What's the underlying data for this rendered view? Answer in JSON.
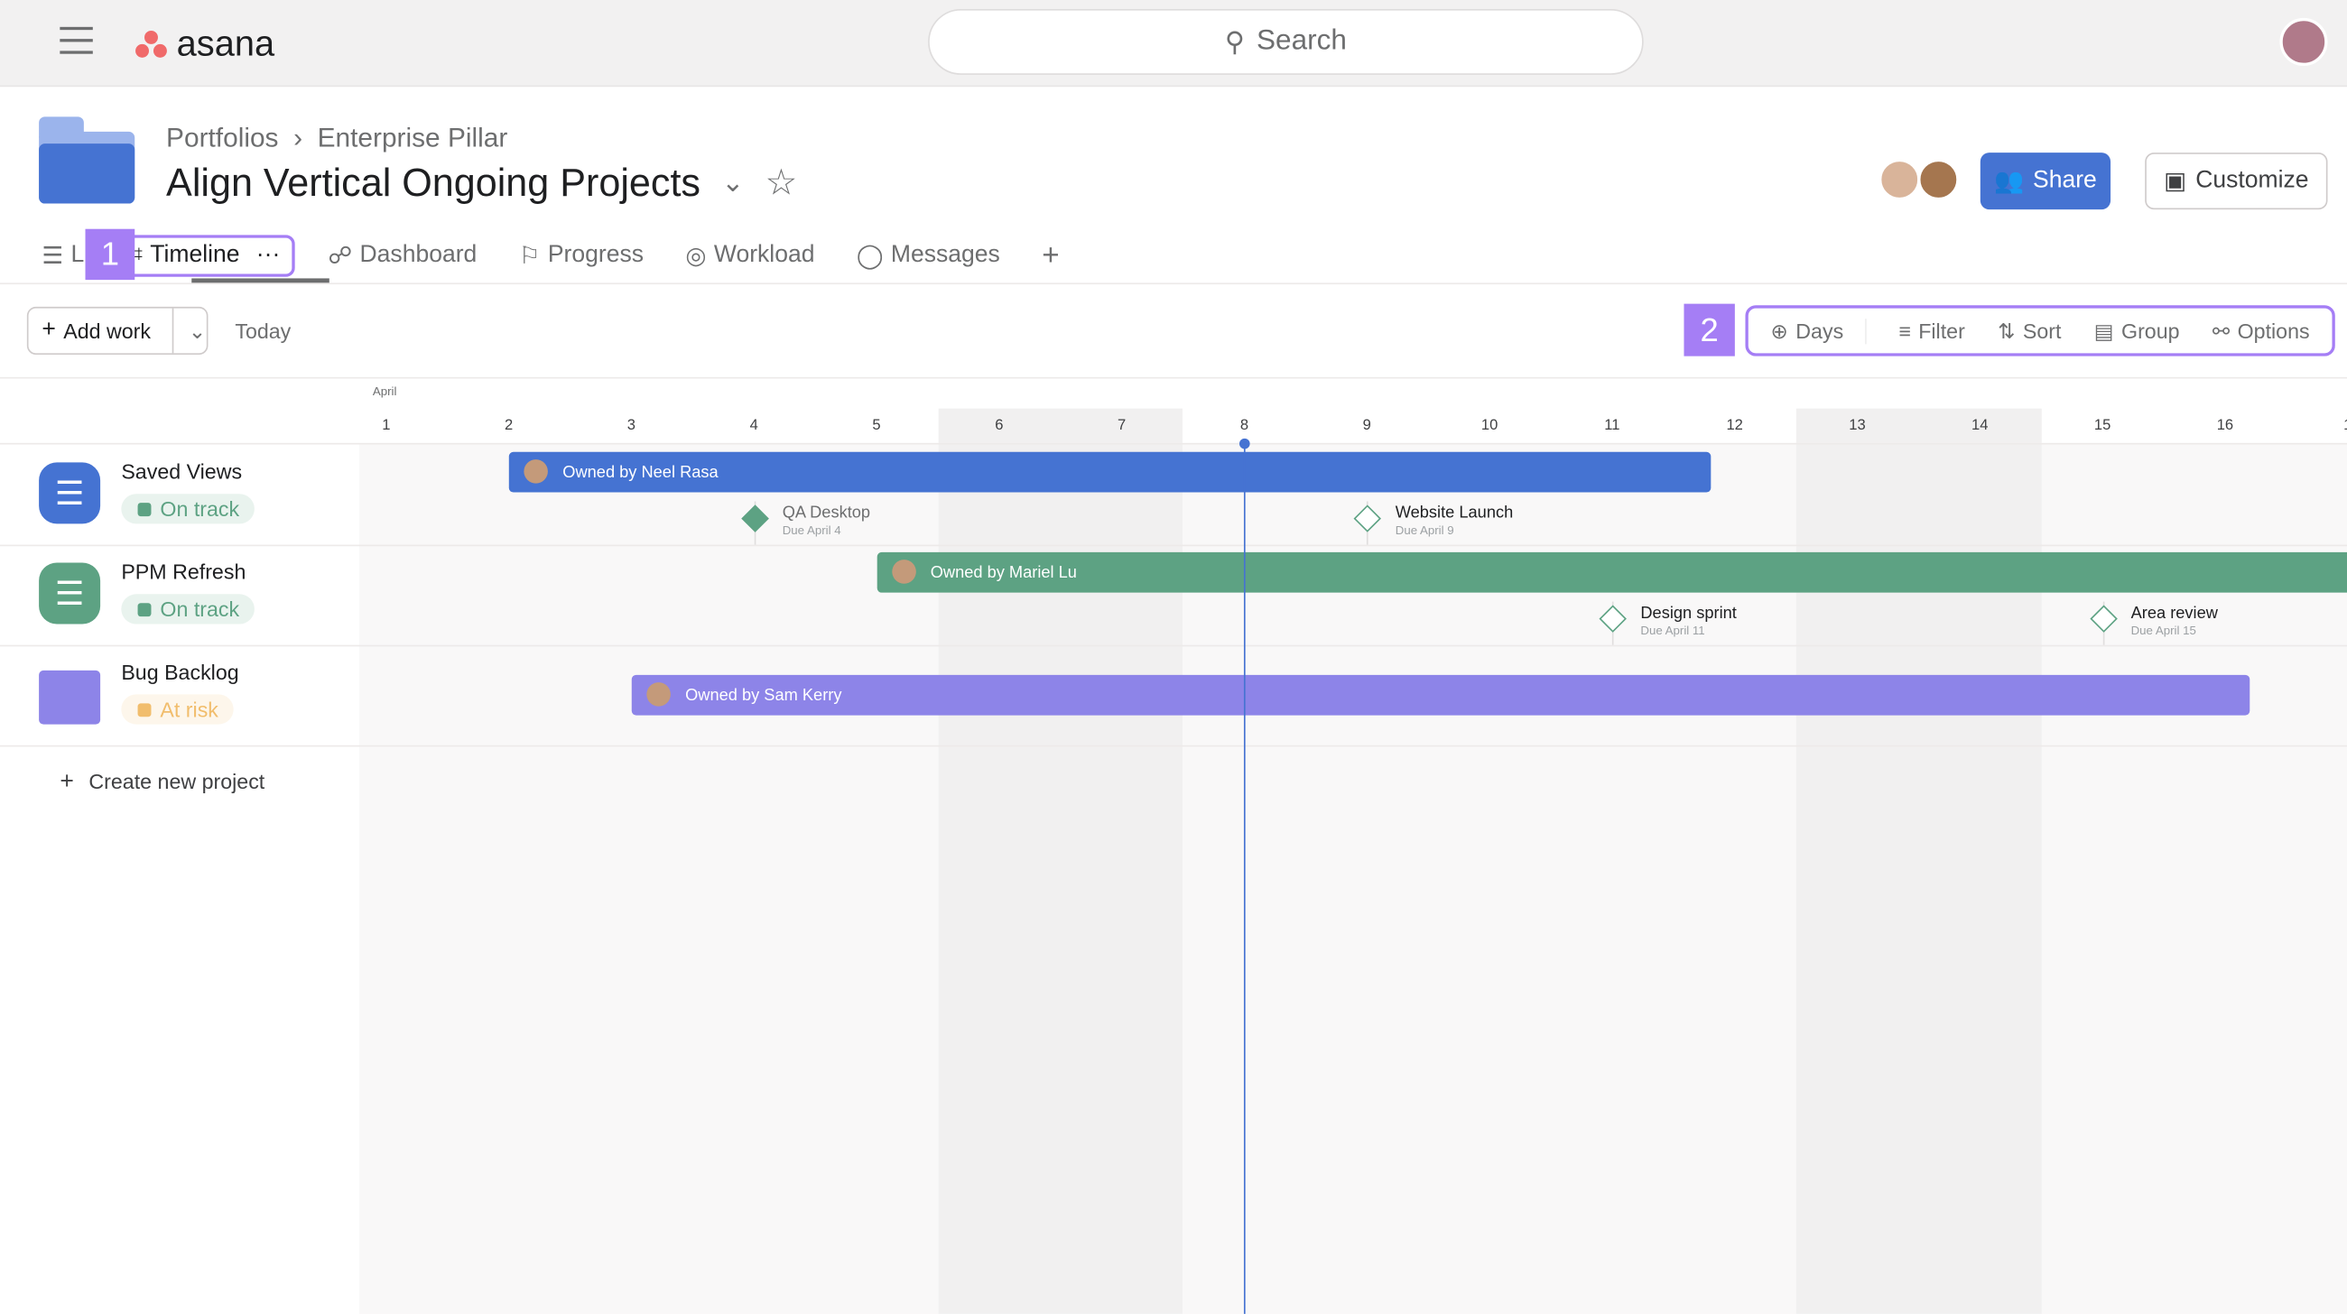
{
  "app": {
    "brand": "asana",
    "search_placeholder": "Search"
  },
  "breadcrumb": [
    "Portfolios",
    "Enterprise Pillar"
  ],
  "page_title": "Align Vertical Ongoing Projects",
  "header_buttons": {
    "share": "Share",
    "customize": "Customize"
  },
  "tabs": [
    {
      "label": "L"
    },
    {
      "label": "Timeline",
      "active": true
    },
    {
      "label": "Dashboard"
    },
    {
      "label": "Progress"
    },
    {
      "label": "Workload"
    },
    {
      "label": "Messages"
    }
  ],
  "annotations": {
    "one": "1",
    "two": "2"
  },
  "toolbar": {
    "add_work": "Add work",
    "today": "Today",
    "days": "Days",
    "filter": "Filter",
    "sort": "Sort",
    "group": "Group",
    "options": "Options"
  },
  "timeline": {
    "month": "April",
    "days": [
      "1",
      "2",
      "3",
      "4",
      "5",
      "6",
      "7",
      "8",
      "9",
      "10",
      "11",
      "12",
      "13",
      "14",
      "15",
      "16",
      "1"
    ],
    "today": 8,
    "weekends": [
      6,
      7,
      13,
      14
    ]
  },
  "projects": [
    {
      "name": "Saved Views",
      "status": "On track",
      "status_color": "#5da283",
      "color": "#4573d2",
      "bar": {
        "label": "Owned by Neel Rasa",
        "start": 2,
        "end": 11.8
      },
      "milestones": [
        {
          "name": "QA Desktop",
          "due": "Due April 4",
          "day": 4,
          "done": true
        },
        {
          "name": "Website Launch",
          "due": "Due April 9",
          "day": 9,
          "done": false
        }
      ]
    },
    {
      "name": "PPM Refresh",
      "status": "On track",
      "status_color": "#5da283",
      "color": "#5da283",
      "bar": {
        "label": "Owned by Mariel Lu",
        "start": 5,
        "end": 17.5
      },
      "milestones": [
        {
          "name": "Design sprint",
          "due": "Due April 11",
          "day": 11,
          "done": false
        },
        {
          "name": "Area review",
          "due": "Due April 15",
          "day": 15,
          "done": false
        }
      ]
    },
    {
      "name": "Bug Backlog",
      "status": "At risk",
      "status_color": "#f1bd6c",
      "color": "#8d84e8",
      "bar": {
        "label": "Owned by Sam Kerry",
        "start": 3,
        "end": 16.2
      },
      "milestones": []
    }
  ],
  "create_project": "Create new project"
}
